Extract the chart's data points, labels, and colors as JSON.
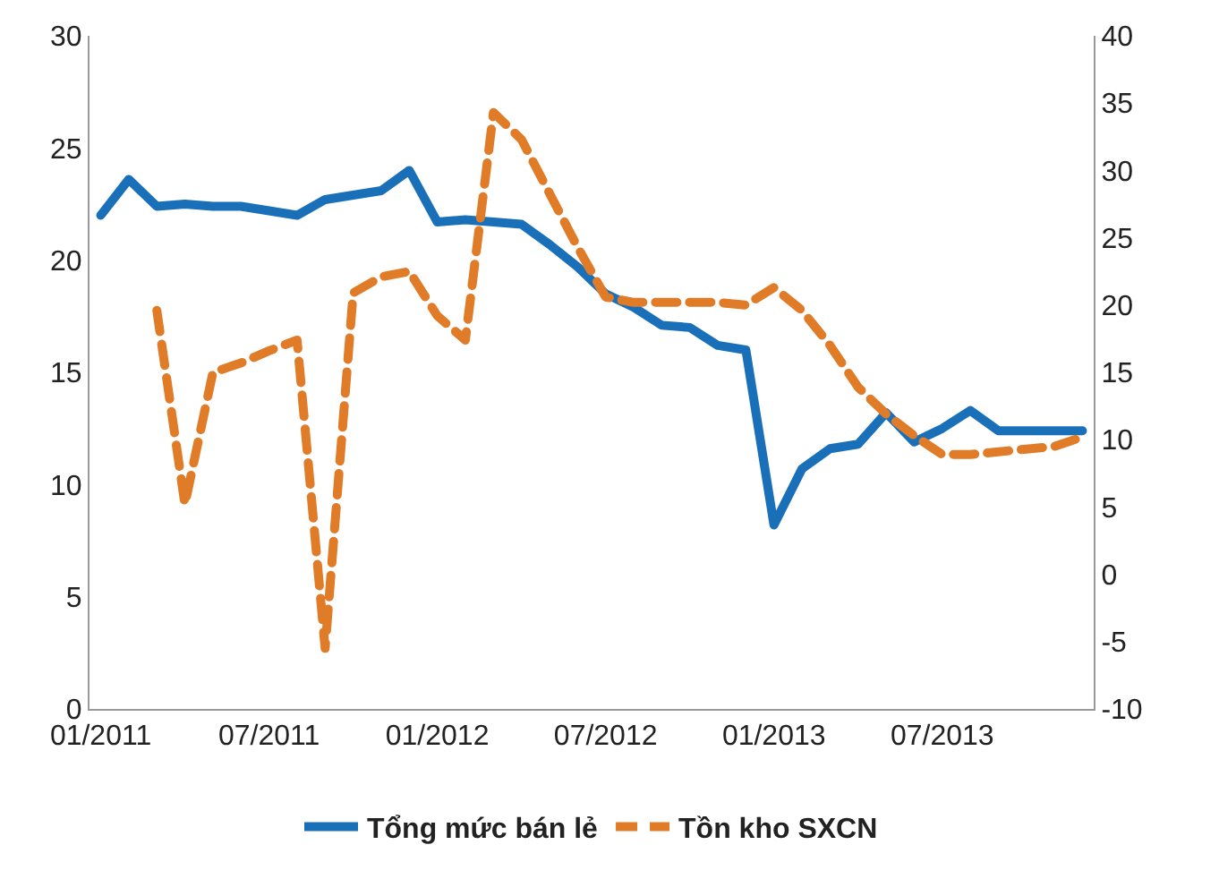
{
  "chart_data": {
    "type": "line",
    "categories": [
      "01/2011",
      null,
      null,
      null,
      null,
      null,
      "07/2011",
      null,
      null,
      null,
      null,
      null,
      "01/2012",
      null,
      null,
      null,
      null,
      null,
      "07/2012",
      null,
      null,
      null,
      null,
      null,
      "01/2013",
      null,
      null,
      null,
      null,
      null,
      "07/2013",
      null,
      null,
      null,
      null,
      null
    ],
    "series": [
      {
        "name": "Tổng mức bán lẻ",
        "color": "#1a70b8",
        "line_style": "solid",
        "values": [
          22.0,
          23.6,
          22.4,
          22.5,
          22.4,
          22.4,
          22.2,
          22.0,
          22.7,
          22.9,
          23.1,
          24.0,
          21.7,
          21.8,
          21.7,
          21.6,
          20.7,
          19.7,
          18.5,
          17.9,
          17.1,
          17.0,
          16.2,
          16.0,
          8.2,
          10.7,
          11.6,
          11.8,
          13.2,
          11.9,
          12.5,
          13.3,
          12.4,
          12.4,
          12.4,
          12.4
        ]
      },
      {
        "name": "Tồn kho SXCN",
        "color": "#e07b28",
        "line_style": "dashed",
        "axis": "y2",
        "values": [
          null,
          null,
          19.6,
          5.2,
          15.0,
          15.7,
          16.6,
          17.4,
          -5.5,
          20.9,
          22.1,
          22.5,
          19.2,
          17.4,
          34.3,
          32.3,
          28.3,
          24.3,
          20.6,
          20.2,
          20.2,
          20.2,
          20.2,
          20.0,
          21.3,
          19.6,
          17.0,
          13.9,
          11.9,
          10.3,
          8.9,
          8.9,
          9.1,
          9.3,
          9.5,
          10.2
        ]
      }
    ],
    "ylim": [
      0,
      30
    ],
    "yticks": [
      0,
      5,
      10,
      15,
      20,
      25,
      30
    ],
    "y2lim": [
      -10,
      40
    ],
    "y2ticks": [
      -10,
      -5,
      0,
      5,
      10,
      15,
      20,
      25,
      30,
      35,
      40
    ],
    "legend": "bottom",
    "marker": "none"
  }
}
